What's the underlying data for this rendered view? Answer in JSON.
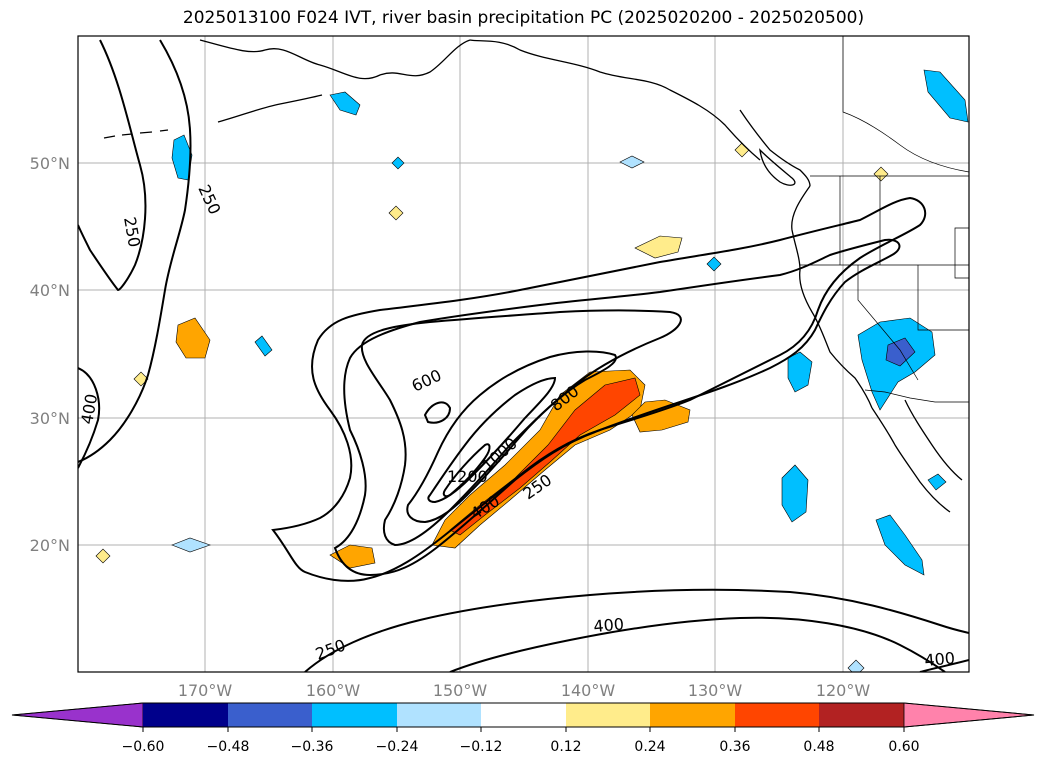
{
  "title": "2025013100 F024 IVT, river basin precipitation PC (2025020200 - 2025020500)",
  "map": {
    "lat_labels": [
      "50°N",
      "40°N",
      "30°N",
      "20°N"
    ],
    "lon_labels": [
      "170°W",
      "160°W",
      "150°W",
      "140°W",
      "130°W",
      "120°W"
    ],
    "contour_labels": [
      "250",
      "250",
      "400",
      "600",
      "800",
      "1000",
      "1200",
      "400",
      "250",
      "400",
      "250",
      "400"
    ]
  },
  "colorbar": {
    "ticks": [
      "−0.60",
      "−0.48",
      "−0.36",
      "−0.24",
      "−0.12",
      "0.12",
      "0.24",
      "0.36",
      "0.48",
      "0.60"
    ],
    "colors": [
      "#9932cc",
      "#00008b",
      "#3a5fcd",
      "#00bfff",
      "#b0e2ff",
      "#ffffff",
      "#ffec8b",
      "#ffa500",
      "#ff4500",
      "#b22222",
      "#ff82ab"
    ]
  }
}
